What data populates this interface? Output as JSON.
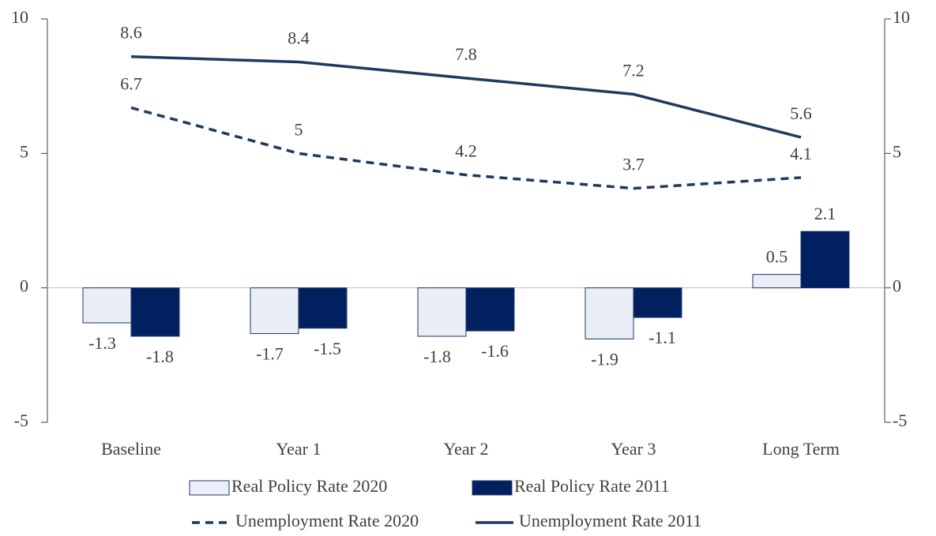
{
  "chart_data": {
    "type": "bar-line",
    "categories": [
      "Baseline",
      "Year 1",
      "Year 2",
      "Year 3",
      "Long Term"
    ],
    "series": [
      {
        "name": "Real Policy Rate 2020",
        "type": "bar",
        "color": "#e9eef7",
        "values": [
          -1.3,
          -1.7,
          -1.8,
          -1.9,
          0.5
        ]
      },
      {
        "name": "Real Policy Rate 2011",
        "type": "bar",
        "color": "#002060",
        "values": [
          -1.8,
          -1.5,
          -1.6,
          -1.1,
          2.1
        ]
      },
      {
        "name": "Unemployment Rate 2020",
        "type": "line",
        "style": "dashed",
        "axis": "y2",
        "color": "#1f3a5f",
        "values": [
          6.7,
          5,
          4.2,
          3.7,
          4.1
        ]
      },
      {
        "name": "Unemployment Rate 2011",
        "type": "line",
        "style": "solid",
        "axis": "y2",
        "color": "#1f3a5f",
        "values": [
          8.6,
          8.4,
          7.8,
          7.2,
          5.6
        ]
      }
    ],
    "ylim": [
      -5,
      10
    ],
    "yticks": [
      -5,
      0,
      5,
      10
    ],
    "y2lim": [
      -5,
      10
    ],
    "y2ticks": [
      -5,
      0,
      5,
      10
    ],
    "legend": "bottom"
  }
}
